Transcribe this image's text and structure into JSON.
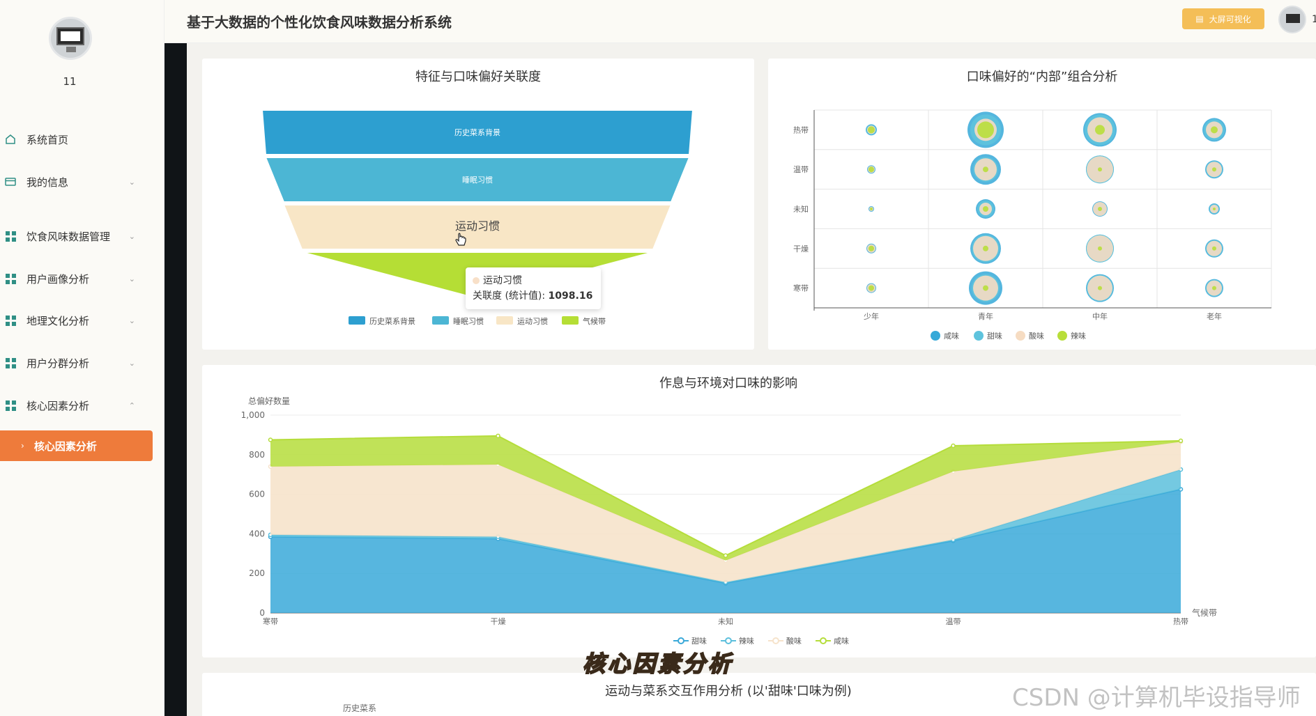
{
  "header": {
    "title": "基于大数据的个性化饮食风味数据分析系统",
    "bigscreen_label": "大屏可视化",
    "more_label": "1"
  },
  "sidebar": {
    "username": "11",
    "items": [
      {
        "label": "系统首页"
      },
      {
        "label": "我的信息"
      },
      {
        "label": "饮食风味数据管理"
      },
      {
        "label": "用户画像分析"
      },
      {
        "label": "地理文化分析"
      },
      {
        "label": "用户分群分析"
      },
      {
        "label": "核心因素分析"
      }
    ],
    "active_sub": "核心因素分析"
  },
  "funnel": {
    "title": "特征与口味偏好关联度",
    "legend": [
      "历史菜系背景",
      "睡眠习惯",
      "运动习惯",
      "气候带"
    ],
    "stage_labels": [
      "历史菜系背景",
      "睡眠习惯",
      "运动习惯",
      "气"
    ],
    "colors": [
      "#2d9fd0",
      "#4cb6d4",
      "#f8e6c6",
      "#b5de35"
    ],
    "tooltip": {
      "name": "运动习惯",
      "metric": "关联度 (统计值): ",
      "value": "1098.16"
    }
  },
  "bubble": {
    "title": "口味偏好的“内部”组合分析",
    "y_categories": [
      "热带",
      "温带",
      "未知",
      "干燥",
      "寒带"
    ],
    "x_categories": [
      "少年",
      "青年",
      "中年",
      "老年"
    ],
    "legend": [
      "咸味",
      "甜味",
      "酸味",
      "辣味"
    ],
    "colors": [
      "#36a9d8",
      "#5ec3dd",
      "#f6dcc2",
      "#b8de3a"
    ]
  },
  "area": {
    "title": "作息与环境对口味的影响",
    "ylabel": "总偏好数量",
    "xlabel": "气候带",
    "yticks": [
      "0",
      "200",
      "400",
      "600",
      "800",
      "1,000"
    ],
    "legend": [
      "甜味",
      "辣味",
      "酸味",
      "咸味"
    ],
    "colors": [
      "#3aa9d9",
      "#5cbfdc",
      "#f6e3cb",
      "#b5dd3b"
    ]
  },
  "bottom_panel": {
    "title": "运动与菜系交互作用分析 (以'甜味'口味为例)",
    "ylabel": "历史菜系"
  },
  "overlay": {
    "caption": "核心因素分析",
    "watermark": "CSDN @计算机毕设指导师"
  },
  "chart_data": [
    {
      "type": "funnel",
      "title": "特征与口味偏好关联度",
      "categories": [
        "历史菜系背景",
        "睡眠习惯",
        "运动习惯",
        "气候带"
      ],
      "values": [
        1400,
        1250,
        1098.16,
        700
      ]
    },
    {
      "type": "scatter",
      "title": "口味偏好的“内部”组合分析",
      "x": [
        "少年",
        "青年",
        "中年",
        "老年"
      ],
      "y": [
        "热带",
        "温带",
        "未知",
        "干燥",
        "寒带"
      ],
      "series": [
        {
          "name": "咸味",
          "sizes": [
            [
              8,
              26,
              24,
              17
            ],
            [
              6,
              22,
              20,
              13
            ],
            [
              4,
              14,
              11,
              8
            ],
            [
              7,
              22,
              20,
              13
            ],
            [
              7,
              24,
              20,
              13
            ]
          ]
        },
        {
          "name": "甜味",
          "sizes": [
            [
              7,
              22,
              22,
              15
            ],
            [
              5,
              18,
              20,
              12
            ],
            [
              3,
              12,
              10,
              7
            ],
            [
              6,
              20,
              20,
              12
            ],
            [
              6,
              20,
              19,
              12
            ]
          ]
        },
        {
          "name": "酸味",
          "sizes": [
            [
              6,
              16,
              18,
              12
            ],
            [
              5,
              16,
              19,
              11
            ],
            [
              3,
              9,
              10,
              6
            ],
            [
              6,
              18,
              19,
              11
            ],
            [
              6,
              18,
              18,
              11
            ]
          ]
        },
        {
          "name": "辣味",
          "sizes": [
            [
              5,
              12,
              7,
              5
            ],
            [
              4,
              4,
              3,
              3
            ],
            [
              2,
              4,
              3,
              2
            ],
            [
              4,
              4,
              3,
              3
            ],
            [
              4,
              4,
              3,
              3
            ]
          ]
        }
      ]
    },
    {
      "type": "area",
      "title": "作息与环境对口味的影响",
      "categories": [
        "寒带",
        "干燥",
        "未知",
        "温带",
        "热带"
      ],
      "ylim": [
        0,
        1000
      ],
      "stacked": true,
      "series": [
        {
          "name": "甜味",
          "values": [
            385,
            375,
            150,
            365,
            625
          ]
        },
        {
          "name": "辣味",
          "values": [
            10,
            10,
            5,
            5,
            100
          ]
        },
        {
          "name": "酸味",
          "values": [
            345,
            365,
            110,
            345,
            140
          ]
        },
        {
          "name": "咸味",
          "values": [
            135,
            145,
            25,
            130,
            5
          ]
        }
      ]
    }
  ]
}
